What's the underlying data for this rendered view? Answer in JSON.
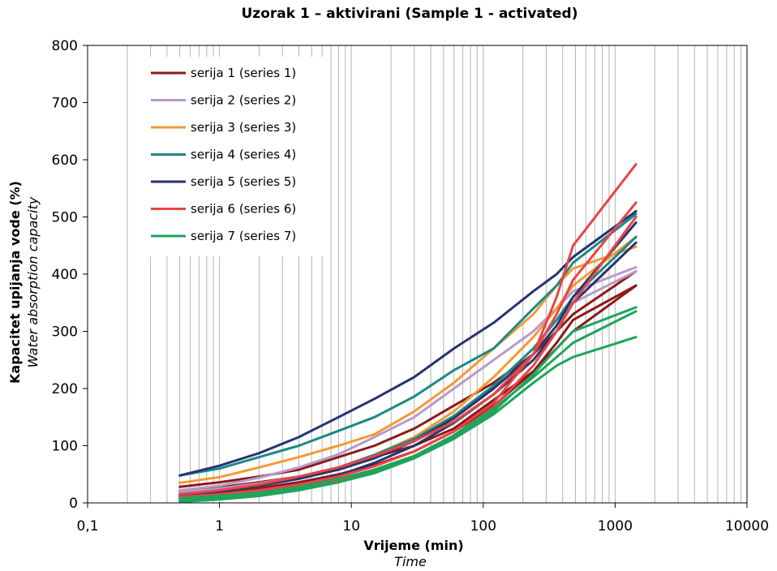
{
  "chart_data": {
    "type": "line",
    "title": "Uzorak 1 – aktivirani (Sample 1 - activated)",
    "xlabel": "Vrijeme (min)",
    "xlabel_sub": "Time",
    "ylabel": "Kapacitet upijanja vode (%)",
    "ylabel_sub": "Water absorption capacity",
    "x_scale": "log",
    "xlim": [
      0.1,
      10000
    ],
    "ylim": [
      0,
      800
    ],
    "x_ticks": [
      0.1,
      1,
      10,
      100,
      1000,
      10000
    ],
    "x_tick_labels": [
      "0,1",
      "1",
      "10",
      "100",
      "1000",
      "10000"
    ],
    "y_ticks": [
      0,
      100,
      200,
      300,
      400,
      500,
      600,
      700,
      800
    ],
    "y_tick_labels": [
      "0",
      "100",
      "200",
      "300",
      "400",
      "500",
      "600",
      "700",
      "800"
    ],
    "grid": {
      "vertical_minor_log": true,
      "horizontal": false
    },
    "legend_position": "top-left",
    "x": [
      0.5,
      1,
      2,
      4,
      8,
      15,
      30,
      60,
      120,
      240,
      360,
      480,
      1440
    ],
    "series": [
      {
        "name": "serija 1 (series 1)",
        "color": "#8b1a1a",
        "lines": [
          [
            28,
            36,
            46,
            58,
            80,
            100,
            130,
            170,
            210,
            260,
            300,
            330,
            405
          ],
          [
            20,
            27,
            36,
            46,
            62,
            80,
            100,
            130,
            180,
            230,
            270,
            300,
            380
          ],
          [
            12,
            18,
            26,
            36,
            50,
            66,
            90,
            125,
            170,
            230,
            280,
            320,
            380
          ]
        ]
      },
      {
        "name": "serija 2 (series 2)",
        "color": "#b89ac8",
        "lines": [
          [
            22,
            30,
            44,
            62,
            85,
            115,
            150,
            200,
            250,
            300,
            340,
            370,
            412
          ],
          [
            18,
            25,
            34,
            46,
            62,
            84,
            110,
            150,
            200,
            260,
            310,
            350,
            405
          ]
        ]
      },
      {
        "name": "serija 3 (series 3)",
        "color": "#f29a35",
        "lines": [
          [
            35,
            45,
            62,
            80,
            100,
            120,
            160,
            210,
            270,
            330,
            380,
            410,
            448
          ],
          [
            15,
            22,
            32,
            45,
            62,
            84,
            115,
            160,
            220,
            290,
            340,
            380,
            465
          ]
        ]
      },
      {
        "name": "serija 4 (series 4)",
        "color": "#1a8a85",
        "lines": [
          [
            48,
            60,
            80,
            100,
            126,
            150,
            186,
            232,
            270,
            340,
            380,
            420,
            505
          ],
          [
            14,
            20,
            30,
            44,
            62,
            84,
            112,
            152,
            205,
            270,
            320,
            360,
            465
          ]
        ]
      },
      {
        "name": "serija 5 (series 5)",
        "color": "#283470",
        "lines": [
          [
            48,
            65,
            87,
            115,
            150,
            182,
            220,
            270,
            315,
            370,
            400,
            430,
            510
          ],
          [
            10,
            15,
            22,
            32,
            48,
            70,
            100,
            140,
            190,
            250,
            300,
            350,
            455
          ],
          [
            15,
            20,
            30,
            42,
            58,
            78,
            108,
            148,
            200,
            260,
            310,
            360,
            490
          ]
        ]
      },
      {
        "name": "serija 6 (series 6)",
        "color": "#e84545",
        "lines": [
          [
            10,
            15,
            22,
            32,
            46,
            64,
            90,
            125,
            175,
            260,
            360,
            450,
            592
          ],
          [
            15,
            22,
            32,
            46,
            62,
            82,
            108,
            142,
            190,
            260,
            330,
            390,
            525
          ],
          [
            8,
            12,
            18,
            26,
            40,
            58,
            82,
            118,
            168,
            240,
            300,
            350,
            500
          ]
        ]
      },
      {
        "name": "serija 7 (series 7)",
        "color": "#1ea55c",
        "lines": [
          [
            4,
            8,
            14,
            24,
            36,
            52,
            78,
            112,
            155,
            210,
            240,
            255,
            290
          ],
          [
            8,
            12,
            18,
            28,
            42,
            58,
            82,
            118,
            165,
            220,
            255,
            280,
            335
          ],
          [
            2,
            6,
            12,
            22,
            36,
            54,
            80,
            115,
            160,
            225,
            270,
            300,
            342
          ]
        ]
      }
    ]
  }
}
